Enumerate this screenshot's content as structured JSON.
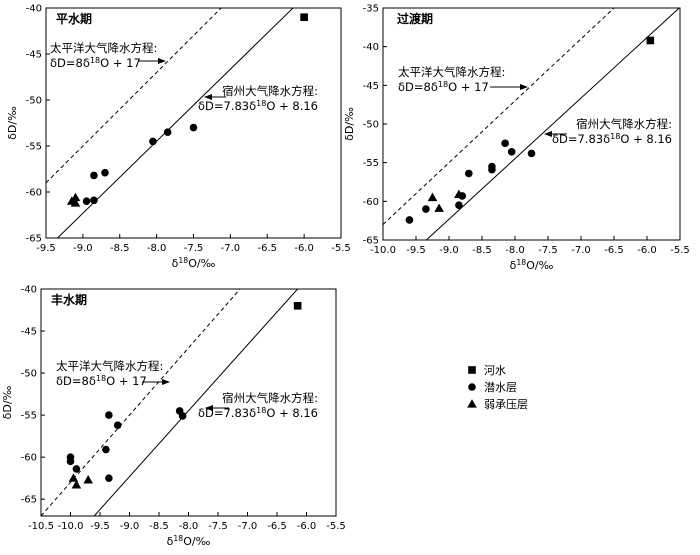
{
  "chart_data": [
    {
      "type": "scatter",
      "title": "平水期",
      "xlabel": "δ18O/‰",
      "ylabel": "δD/‰",
      "xlim": [
        -9.5,
        -5.5
      ],
      "ylim": [
        -65,
        -40
      ],
      "xticks": [
        -9.5,
        -9.0,
        -8.5,
        -8.0,
        -7.5,
        -7.0,
        -6.5,
        -6.0,
        -5.5
      ],
      "yticks": [
        -40,
        -45,
        -50,
        -55,
        -60,
        -65
      ],
      "series": [
        {
          "name": "河水",
          "marker": "square",
          "points": [
            [
              -6.0,
              -41.0
            ]
          ]
        },
        {
          "name": "潜水层",
          "marker": "circle",
          "points": [
            [
              -8.85,
              -58.2
            ],
            [
              -8.7,
              -57.9
            ],
            [
              -8.05,
              -54.5
            ],
            [
              -7.85,
              -53.5
            ],
            [
              -7.5,
              -53.0
            ],
            [
              -8.95,
              -61.0
            ],
            [
              -8.85,
              -60.9
            ]
          ]
        },
        {
          "name": "弱承压层",
          "marker": "triangle",
          "points": [
            [
              -9.1,
              -60.6
            ],
            [
              -9.15,
              -61.0
            ],
            [
              -9.1,
              -61.2
            ]
          ]
        }
      ],
      "lines": [
        {
          "name": "太平洋大气降水方程",
          "style": "dashed",
          "slope": 8,
          "intercept": 17
        },
        {
          "name": "宿州大气降水方程",
          "style": "solid",
          "slope": 7.83,
          "intercept": 8.16
        }
      ],
      "annotations": [
        {
          "label": "太平洋大气降水方程:",
          "equation": "δD=8δ18O + 17"
        },
        {
          "label": "宿州大气降水方程:",
          "equation": "δD=7.83δ18O + 8.16"
        }
      ]
    },
    {
      "type": "scatter",
      "title": "过渡期",
      "xlabel": "δ18O/‰",
      "ylabel": "δD/‰",
      "xlim": [
        -10.0,
        -5.5
      ],
      "ylim": [
        -65,
        -35
      ],
      "xticks": [
        -10.0,
        -9.5,
        -9.0,
        -8.5,
        -8.0,
        -7.5,
        -7.0,
        -6.5,
        -6.0,
        -5.5
      ],
      "yticks": [
        -35,
        -40,
        -45,
        -50,
        -55,
        -60,
        -65
      ],
      "series": [
        {
          "name": "河水",
          "marker": "square",
          "points": [
            [
              -5.95,
              -39.2
            ]
          ]
        },
        {
          "name": "潜水层",
          "marker": "circle",
          "points": [
            [
              -9.6,
              -62.4
            ],
            [
              -9.35,
              -61.0
            ],
            [
              -8.8,
              -59.3
            ],
            [
              -8.85,
              -60.5
            ],
            [
              -8.7,
              -56.4
            ],
            [
              -8.35,
              -55.5
            ],
            [
              -8.35,
              -55.9
            ],
            [
              -8.15,
              -52.5
            ],
            [
              -8.05,
              -53.6
            ],
            [
              -7.75,
              -53.8
            ]
          ]
        },
        {
          "name": "弱承压层",
          "marker": "triangle",
          "points": [
            [
              -9.25,
              -59.5
            ],
            [
              -9.15,
              -60.9
            ],
            [
              -8.85,
              -59.1
            ]
          ]
        }
      ],
      "lines": [
        {
          "name": "太平洋大气降水方程",
          "style": "dashed",
          "slope": 8,
          "intercept": 17
        },
        {
          "name": "宿州大气降水方程",
          "style": "solid",
          "slope": 7.83,
          "intercept": 8.16
        }
      ],
      "annotations": [
        {
          "label": "太平洋大气降水方程:",
          "equation": "δD=8δ18O + 17"
        },
        {
          "label": "宿州大气降水方程:",
          "equation": "δD=7.83δ18O + 8.16"
        }
      ]
    },
    {
      "type": "scatter",
      "title": "丰水期",
      "xlabel": "δ18O/‰",
      "ylabel": "δD/‰",
      "xlim": [
        -10.5,
        -5.5
      ],
      "ylim": [
        -67,
        -40
      ],
      "xticks": [
        -10.5,
        -10.0,
        -9.5,
        -9.0,
        -8.5,
        -8.0,
        -7.5,
        -7.0,
        -6.5,
        -6.0,
        -5.5
      ],
      "yticks": [
        -40,
        -45,
        -50,
        -55,
        -60,
        -65
      ],
      "series": [
        {
          "name": "河水",
          "marker": "square",
          "points": [
            [
              -6.15,
              -42.0
            ]
          ]
        },
        {
          "name": "潜水层",
          "marker": "circle",
          "points": [
            [
              -10.0,
              -60.0
            ],
            [
              -10.0,
              -60.5
            ],
            [
              -9.9,
              -61.4
            ],
            [
              -9.4,
              -59.1
            ],
            [
              -9.35,
              -55.0
            ],
            [
              -9.35,
              -62.5
            ],
            [
              -9.2,
              -56.2
            ],
            [
              -8.15,
              -54.5
            ],
            [
              -8.1,
              -55.1
            ]
          ]
        },
        {
          "name": "弱承压层",
          "marker": "triangle",
          "points": [
            [
              -9.95,
              -62.5
            ],
            [
              -9.9,
              -63.3
            ],
            [
              -9.7,
              -62.7
            ]
          ]
        }
      ],
      "lines": [
        {
          "name": "太平洋大气降水方程",
          "style": "dashed",
          "slope": 8,
          "intercept": 17
        },
        {
          "name": "宿州大气降水方程",
          "style": "solid",
          "slope": 7.83,
          "intercept": 8.16
        }
      ],
      "annotations": [
        {
          "label": "太平洋大气降水方程:",
          "equation": "δD=8δ18O + 17"
        },
        {
          "label": "宿州大气降水方程:",
          "equation": "δD=7.83δ18O + 8.16"
        }
      ]
    }
  ],
  "legend": {
    "items": [
      {
        "marker": "square",
        "label": "河水"
      },
      {
        "marker": "circle",
        "label": "潜水层"
      },
      {
        "marker": "triangle",
        "label": "弱承压层"
      }
    ]
  }
}
